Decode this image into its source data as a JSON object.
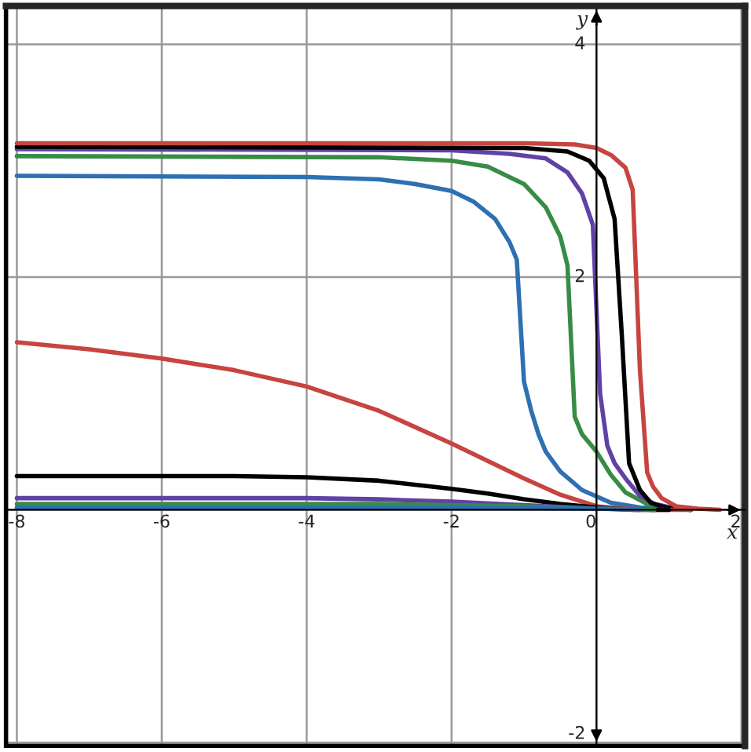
{
  "chart_data": {
    "type": "line",
    "xlabel": "x",
    "ylabel": "y",
    "xlim": [
      -8.15,
      2.05
    ],
    "ylim": [
      -2.03,
      4.33
    ],
    "xticks": [
      -8,
      -6,
      -4,
      -2,
      0,
      2
    ],
    "yticks": [
      -2,
      {
        "value": 0,
        "label": null
      },
      2,
      4
    ],
    "grid": true,
    "marker": "none",
    "line_style": "solid",
    "series": [
      {
        "color": "#2d70b3",
        "x": [
          -8,
          -4,
          -3,
          -2.5,
          -2,
          -1.7,
          -1.4,
          -1.2,
          -1.1,
          -1.0,
          -0.9,
          -0.8,
          -0.7,
          -0.5,
          -0.2,
          0.2,
          0.6,
          1.0,
          1.3
        ],
        "values": [
          2.87,
          2.86,
          2.84,
          2.8,
          2.74,
          2.65,
          2.5,
          2.3,
          2.15,
          1.1,
          0.85,
          0.65,
          0.5,
          0.33,
          0.17,
          0.06,
          0.02,
          0.01,
          0
        ]
      },
      {
        "color": "#388c46",
        "x": [
          -8,
          -3,
          -2,
          -1.5,
          -1,
          -0.7,
          -0.5,
          -0.4,
          -0.3,
          -0.2,
          0,
          0.2,
          0.4,
          0.7,
          1.0,
          1.3
        ],
        "values": [
          3.04,
          3.03,
          3.0,
          2.95,
          2.8,
          2.6,
          2.35,
          2.1,
          0.8,
          0.65,
          0.5,
          0.3,
          0.15,
          0.05,
          0.01,
          0
        ]
      },
      {
        "color": "#6042a6",
        "x": [
          -8,
          -2,
          -1.2,
          -0.7,
          -0.4,
          -0.2,
          -0.05,
          0.05,
          0.15,
          0.25,
          0.4,
          0.6,
          0.8,
          1.1,
          1.3
        ],
        "values": [
          3.1,
          3.09,
          3.06,
          3.02,
          2.9,
          2.72,
          2.45,
          1.0,
          0.55,
          0.4,
          0.27,
          0.12,
          0.05,
          0.01,
          0
        ]
      },
      {
        "color": "#000000",
        "x": [
          -8,
          -1,
          -0.4,
          -0.1,
          0.1,
          0.25,
          0.35,
          0.45,
          0.6,
          0.75,
          0.95,
          1.3
        ],
        "values": [
          3.12,
          3.11,
          3.08,
          3.0,
          2.85,
          2.5,
          1.5,
          0.4,
          0.17,
          0.06,
          0.02,
          0
        ]
      },
      {
        "color": "#c74440",
        "x": [
          -8,
          -1,
          -0.3,
          0,
          0.2,
          0.4,
          0.5,
          0.6,
          0.7,
          0.78,
          0.9,
          1.1,
          1.4,
          1.7
        ],
        "values": [
          3.15,
          3.15,
          3.14,
          3.11,
          3.05,
          2.94,
          2.75,
          1.2,
          0.32,
          0.2,
          0.1,
          0.03,
          0.01,
          0
        ]
      },
      {
        "color": "#c74440",
        "x": [
          -8,
          -7,
          -6,
          -5,
          -4,
          -3,
          -2,
          -1,
          -0.5,
          0,
          0.4,
          0.8,
          1.3
        ],
        "values": [
          1.44,
          1.38,
          1.3,
          1.2,
          1.06,
          0.85,
          0.57,
          0.27,
          0.13,
          0.03,
          0.01,
          0,
          0
        ]
      },
      {
        "color": "#000000",
        "x": [
          -8,
          -5,
          -4,
          -3,
          -2,
          -1.5,
          -1,
          -0.5,
          0,
          0.5,
          1.0
        ],
        "values": [
          0.29,
          0.29,
          0.28,
          0.25,
          0.18,
          0.14,
          0.09,
          0.05,
          0.02,
          0,
          0
        ]
      },
      {
        "color": "#6042a6",
        "x": [
          -8,
          -4,
          -3,
          -2,
          -1,
          0,
          0.8
        ],
        "values": [
          0.1,
          0.1,
          0.09,
          0.07,
          0.04,
          0.01,
          0
        ]
      },
      {
        "color": "#388c46",
        "x": [
          -8,
          -3,
          -1,
          0,
          0.8
        ],
        "values": [
          0.05,
          0.05,
          0.03,
          0.01,
          0
        ]
      },
      {
        "color": "#2d70b3",
        "x": [
          -8,
          -2,
          0,
          0.6
        ],
        "values": [
          0.02,
          0.02,
          0.01,
          0
        ]
      }
    ]
  }
}
